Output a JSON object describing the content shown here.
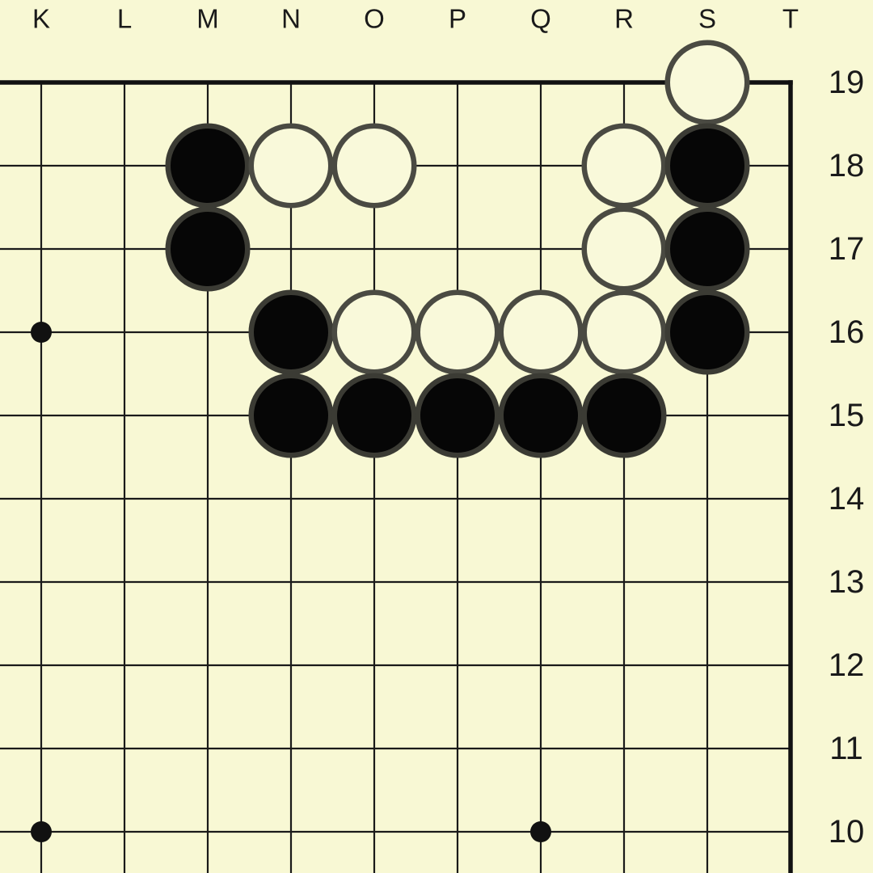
{
  "board": {
    "kind": "go-board-corner-view",
    "visible_columns": "K-T",
    "visible_rows": "19-10",
    "column_labels": [
      "K",
      "L",
      "M",
      "N",
      "O",
      "P",
      "Q",
      "R",
      "S",
      "T"
    ],
    "row_labels": [
      "19",
      "18",
      "17",
      "16",
      "15",
      "14",
      "13",
      "12",
      "11",
      "10"
    ],
    "star_points": [
      {
        "col": "K",
        "row": 16
      },
      {
        "col": "K",
        "row": 10
      },
      {
        "col": "Q",
        "row": 10
      }
    ],
    "stones": [
      {
        "col": "S",
        "row": 19,
        "color": "white"
      },
      {
        "col": "M",
        "row": 18,
        "color": "black"
      },
      {
        "col": "N",
        "row": 18,
        "color": "white"
      },
      {
        "col": "O",
        "row": 18,
        "color": "white"
      },
      {
        "col": "R",
        "row": 18,
        "color": "white"
      },
      {
        "col": "S",
        "row": 18,
        "color": "black"
      },
      {
        "col": "M",
        "row": 17,
        "color": "black"
      },
      {
        "col": "R",
        "row": 17,
        "color": "white"
      },
      {
        "col": "S",
        "row": 17,
        "color": "black"
      },
      {
        "col": "N",
        "row": 16,
        "color": "black"
      },
      {
        "col": "O",
        "row": 16,
        "color": "white"
      },
      {
        "col": "P",
        "row": 16,
        "color": "white"
      },
      {
        "col": "Q",
        "row": 16,
        "color": "white"
      },
      {
        "col": "R",
        "row": 16,
        "color": "white"
      },
      {
        "col": "S",
        "row": 16,
        "color": "black"
      },
      {
        "col": "N",
        "row": 15,
        "color": "black"
      },
      {
        "col": "O",
        "row": 15,
        "color": "black"
      },
      {
        "col": "P",
        "row": 15,
        "color": "black"
      },
      {
        "col": "Q",
        "row": 15,
        "color": "black"
      },
      {
        "col": "R",
        "row": 15,
        "color": "black"
      }
    ],
    "colors": {
      "background": "#f8f8d4",
      "grid_line": "#1a1a1a",
      "border_line": "#111111",
      "label_text": "#1a1a1a",
      "star_point": "#111111",
      "black_stone_fill": "#060606",
      "black_stone_edge": "#3b3b34",
      "white_stone_fill": "#f9f9da",
      "white_stone_edge": "#4a4a42"
    }
  }
}
